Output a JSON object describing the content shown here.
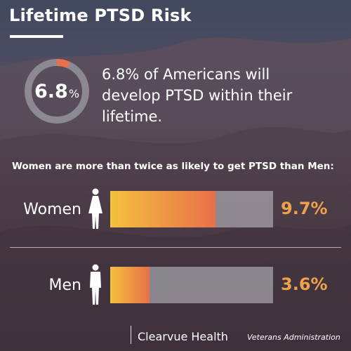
{
  "title": "Lifetime PTSD Risk",
  "headline": {
    "value": "6.8",
    "unit": "%",
    "text": "6.8% of Americans will develop PTSD within their lifetime."
  },
  "subheading": "Women are more than twice as likely to get PTSD than Men:",
  "footer": {
    "brand": "Clearvue Health",
    "source": "Veterans Administration"
  },
  "colors": {
    "accent": "#e8704a",
    "accent_light": "#f3c23e",
    "percent_text": "#f0a24b",
    "ring_track": "#9a99a0"
  },
  "chart_data": [
    {
      "type": "pie",
      "values": [
        6.8,
        93.2
      ],
      "labels": [
        "6.8%",
        ""
      ],
      "unit": "%"
    },
    {
      "type": "bar",
      "categories": [
        "Women",
        "Men"
      ],
      "values": [
        9.7,
        3.6
      ],
      "value_labels": [
        "9.7%",
        "3.6%"
      ],
      "icons": [
        "female-person-icon",
        "male-person-icon"
      ],
      "orientation": "horizontal",
      "xlim": [
        0,
        15
      ]
    }
  ]
}
